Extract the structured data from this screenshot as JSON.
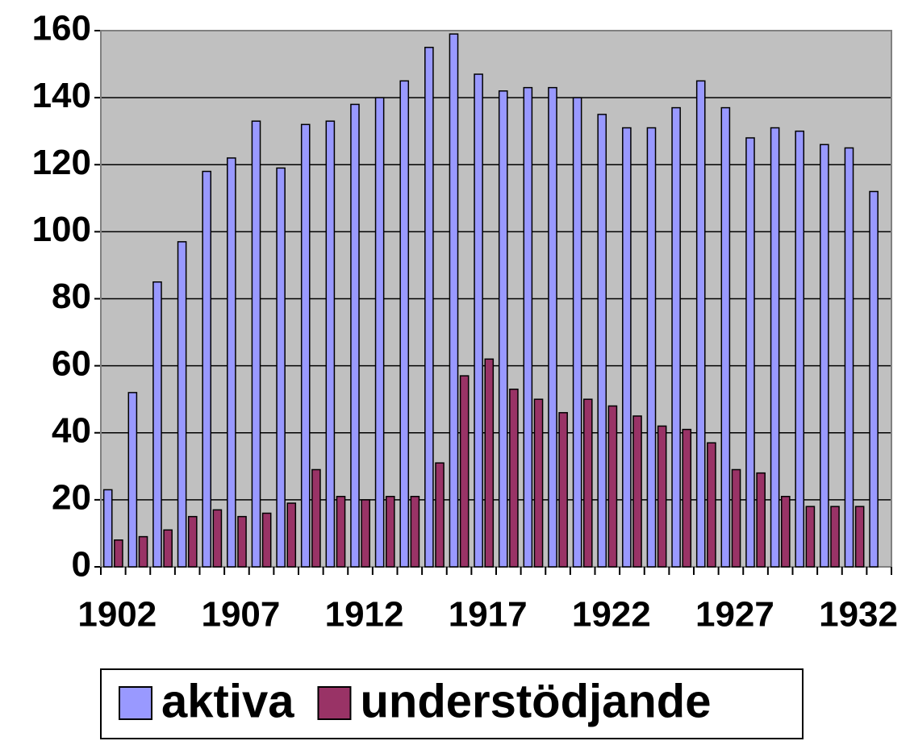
{
  "chart_data": {
    "type": "bar",
    "categories": [
      "1902",
      null,
      null,
      null,
      null,
      "1907",
      null,
      null,
      null,
      null,
      "1912",
      null,
      null,
      null,
      null,
      "1917",
      null,
      null,
      null,
      null,
      "1922",
      null,
      null,
      null,
      null,
      "1927",
      null,
      null,
      null,
      null,
      "1932",
      null
    ],
    "series": [
      {
        "name": "aktiva",
        "color": "#9999ff",
        "values": [
          23,
          52,
          85,
          97,
          118,
          122,
          133,
          119,
          132,
          133,
          138,
          140,
          145,
          155,
          159,
          147,
          142,
          143,
          143,
          140,
          135,
          131,
          131,
          137,
          145,
          137,
          128,
          131,
          130,
          126,
          125,
          112
        ]
      },
      {
        "name": "understödjande",
        "color": "#993366",
        "values": [
          8,
          9,
          11,
          15,
          17,
          15,
          16,
          19,
          29,
          21,
          20,
          21,
          21,
          31,
          57,
          62,
          53,
          50,
          46,
          50,
          48,
          45,
          42,
          41,
          37,
          29,
          28,
          21,
          18,
          18,
          18,
          null
        ]
      }
    ],
    "ylim": [
      0,
      160
    ],
    "yticks": [
      0,
      20,
      40,
      60,
      80,
      100,
      120,
      140,
      160
    ],
    "grid": true,
    "legend": "bottom"
  }
}
